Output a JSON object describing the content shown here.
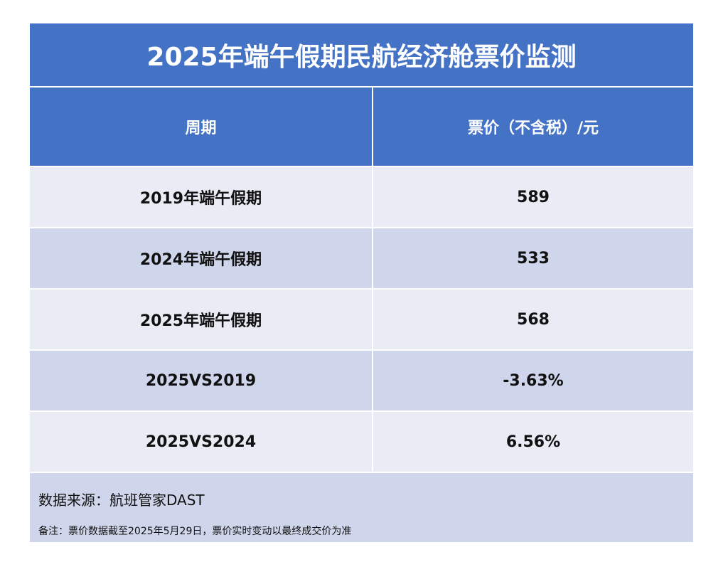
{
  "header": {
    "title": "2025年端午假期民航经济舱票价监测"
  },
  "table": {
    "columns": [
      "周期",
      "票价（不含税）/元"
    ],
    "rows": [
      [
        "2019年端午假期",
        "589"
      ],
      [
        "2024年端午假期",
        "533"
      ],
      [
        "2025年端午假期",
        "568"
      ],
      [
        "2025VS2019",
        "-3.63%"
      ],
      [
        "2025VS2024",
        "6.56%"
      ]
    ]
  },
  "footer": {
    "source": "数据来源：航班管家DAST",
    "note": "备注：票价数据截至2025年5月29日，票价实时变动以最终成交价为准"
  }
}
